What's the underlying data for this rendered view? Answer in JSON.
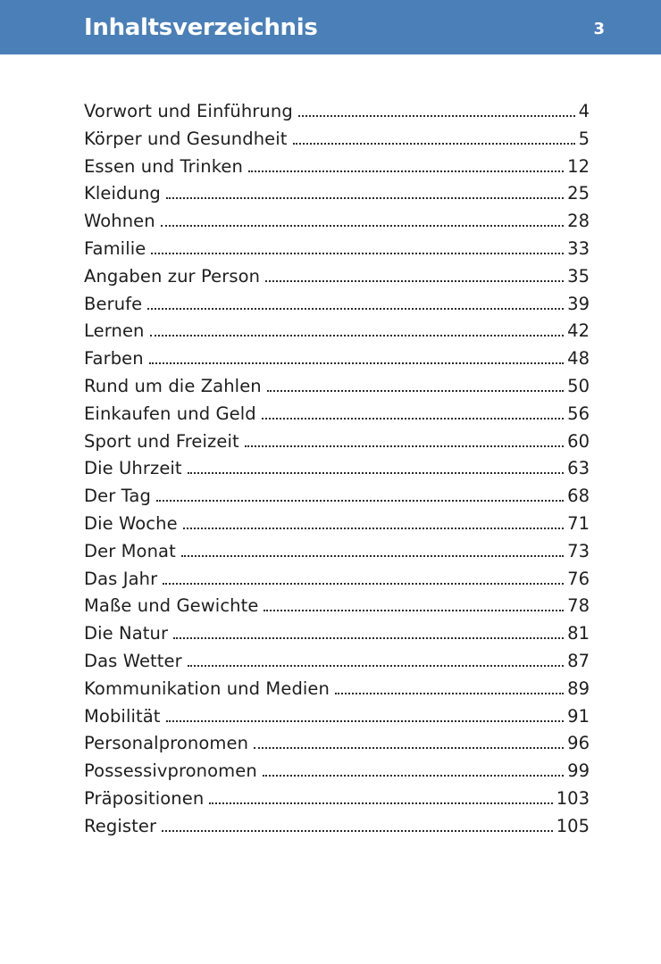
{
  "header": {
    "title": "Inhaltsverzeichnis",
    "page_number": "3",
    "bar_color": "#4a7fb8"
  },
  "toc": {
    "entries": [
      {
        "label": "Vorwort und Einführung",
        "page": "4"
      },
      {
        "label": "Körper und Gesundheit",
        "page": "5"
      },
      {
        "label": "Essen und Trinken",
        "page": "12"
      },
      {
        "label": "Kleidung",
        "page": "25"
      },
      {
        "label": "Wohnen",
        "page": "28"
      },
      {
        "label": "Familie",
        "page": "33"
      },
      {
        "label": "Angaben zur Person",
        "page": "35"
      },
      {
        "label": "Berufe",
        "page": "39"
      },
      {
        "label": "Lernen",
        "page": "42"
      },
      {
        "label": "Farben",
        "page": "48"
      },
      {
        "label": "Rund um die Zahlen",
        "page": "50"
      },
      {
        "label": "Einkaufen und Geld",
        "page": "56"
      },
      {
        "label": "Sport und Freizeit",
        "page": "60"
      },
      {
        "label": "Die Uhrzeit",
        "page": "63"
      },
      {
        "label": "Der Tag",
        "page": "68"
      },
      {
        "label": "Die Woche",
        "page": "71"
      },
      {
        "label": "Der Monat",
        "page": "73"
      },
      {
        "label": "Das Jahr",
        "page": "76"
      },
      {
        "label": "Maße und Gewichte",
        "page": "78"
      },
      {
        "label": "Die Natur",
        "page": "81"
      },
      {
        "label": "Das Wetter",
        "page": "87"
      },
      {
        "label": "Kommunikation und Medien",
        "page": "89"
      },
      {
        "label": "Mobilität",
        "page": "91"
      },
      {
        "label": "Personalpronomen",
        "page": "96"
      },
      {
        "label": "Possessivpronomen",
        "page": "99"
      },
      {
        "label": "Präpositionen",
        "page": "103"
      },
      {
        "label": "Register",
        "page": "105"
      }
    ]
  }
}
